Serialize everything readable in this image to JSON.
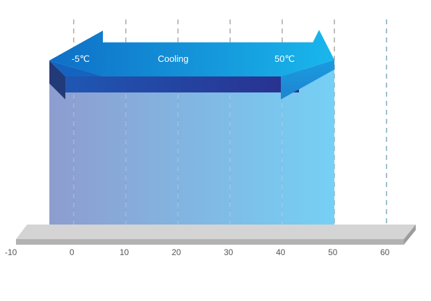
{
  "arrow": {
    "left_label": "-5℃",
    "center_label": "Cooling",
    "right_label": "50℃",
    "range_min": -5,
    "range_max": 50
  },
  "axis": {
    "ticks": [
      "-10",
      "0",
      "10",
      "20",
      "30",
      "40",
      "50",
      "60"
    ]
  },
  "colors": {
    "band_left": "#8494cb",
    "band_right": "#69ccf4",
    "arrow_top_left": "#0f6fc6",
    "arrow_top_right": "#19b7ec",
    "arrow_underside": "#2a2f8e",
    "platform_top": "#d4d4d4",
    "platform_front": "#b2b2b2",
    "gridline": "#a9a9a9",
    "gridline_outside": "#7fa9bf"
  }
}
